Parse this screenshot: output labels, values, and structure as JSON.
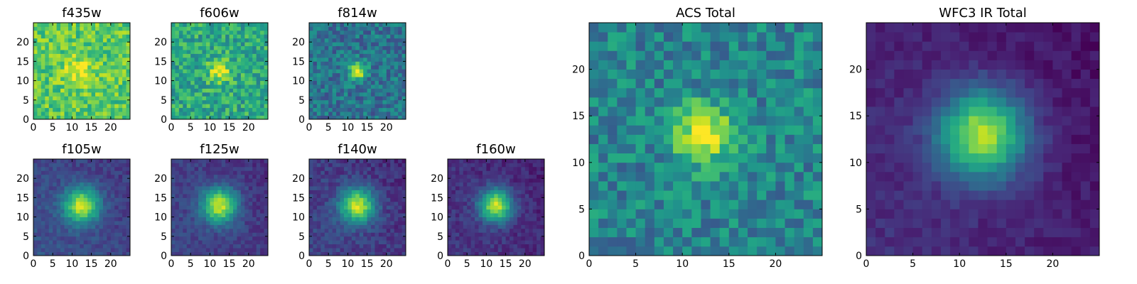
{
  "chart_data": [
    {
      "type": "heatmap",
      "title": "f435w",
      "size": 25,
      "xticks": [
        0,
        5,
        10,
        15,
        20
      ],
      "yticks": [
        0,
        5,
        10,
        15,
        20
      ],
      "xlim": [
        0,
        25
      ],
      "ylim": [
        0,
        25
      ],
      "peak": [
        11.5,
        12.0
      ],
      "sigma": 3.0,
      "amp": 0.2,
      "base": 0.74,
      "noise": 0.16,
      "grad": 0.0,
      "colormap": "viridis",
      "seed": 11
    },
    {
      "type": "heatmap",
      "title": "f606w",
      "size": 25,
      "xticks": [
        0,
        5,
        10,
        15,
        20
      ],
      "yticks": [
        0,
        5,
        10,
        15,
        20
      ],
      "xlim": [
        0,
        25
      ],
      "ylim": [
        0,
        25
      ],
      "peak": [
        12.0,
        12.0
      ],
      "sigma": 2.0,
      "amp": 0.4,
      "base": 0.6,
      "noise": 0.18,
      "grad": 0.0,
      "colormap": "viridis",
      "seed": 23
    },
    {
      "type": "heatmap",
      "title": "f814w",
      "size": 25,
      "xticks": [
        0,
        5,
        10,
        15,
        20
      ],
      "yticks": [
        0,
        5,
        10,
        15,
        20
      ],
      "xlim": [
        0,
        25
      ],
      "ylim": [
        0,
        25
      ],
      "peak": [
        12.0,
        12.0
      ],
      "sigma": 1.6,
      "amp": 0.6,
      "base": 0.38,
      "noise": 0.16,
      "grad": 0.0,
      "colormap": "viridis",
      "seed": 37
    },
    {
      "type": "heatmap",
      "title": "f105w",
      "size": 25,
      "xticks": [
        0,
        5,
        10,
        15,
        20
      ],
      "yticks": [
        0,
        5,
        10,
        15,
        20
      ],
      "xlim": [
        0,
        25
      ],
      "ylim": [
        0,
        25
      ],
      "peak": [
        12.0,
        12.5
      ],
      "sigma": 3.2,
      "amp": 0.72,
      "base": 0.26,
      "noise": 0.07,
      "grad": 0.1,
      "colormap": "viridis",
      "seed": 41
    },
    {
      "type": "heatmap",
      "title": "f125w",
      "size": 25,
      "xticks": [
        0,
        5,
        10,
        15,
        20
      ],
      "yticks": [
        0,
        5,
        10,
        15,
        20
      ],
      "xlim": [
        0,
        25
      ],
      "ylim": [
        0,
        25
      ],
      "peak": [
        12.0,
        12.5
      ],
      "sigma": 3.2,
      "amp": 0.74,
      "base": 0.22,
      "noise": 0.07,
      "grad": 0.08,
      "colormap": "viridis",
      "seed": 53
    },
    {
      "type": "heatmap",
      "title": "f140w",
      "size": 25,
      "xticks": [
        0,
        5,
        10,
        15,
        20
      ],
      "yticks": [
        0,
        5,
        10,
        15,
        20
      ],
      "xlim": [
        0,
        25
      ],
      "ylim": [
        0,
        25
      ],
      "peak": [
        12.0,
        12.5
      ],
      "sigma": 3.2,
      "amp": 0.75,
      "base": 0.22,
      "noise": 0.08,
      "grad": 0.1,
      "colormap": "viridis",
      "seed": 67
    },
    {
      "type": "heatmap",
      "title": "f160w",
      "size": 25,
      "xticks": [
        0,
        5,
        10,
        15,
        20
      ],
      "yticks": [
        0,
        5,
        10,
        15,
        20
      ],
      "xlim": [
        0,
        25
      ],
      "ylim": [
        0,
        25
      ],
      "peak": [
        12.0,
        12.5
      ],
      "sigma": 3.0,
      "amp": 0.78,
      "base": 0.17,
      "noise": 0.07,
      "grad": 0.08,
      "colormap": "viridis",
      "seed": 79
    },
    {
      "type": "heatmap",
      "title": "ACS Total",
      "size": 25,
      "xticks": [
        0,
        5,
        10,
        15,
        20
      ],
      "yticks": [
        0,
        5,
        10,
        15,
        20
      ],
      "xlim": [
        0,
        25
      ],
      "ylim": [
        0,
        25
      ],
      "peak": [
        11.8,
        12.5
      ],
      "sigma": 2.2,
      "amp": 0.58,
      "base": 0.45,
      "noise": 0.17,
      "grad": 0.0,
      "colormap": "viridis",
      "seed": 97
    },
    {
      "type": "heatmap",
      "title": "WFC3 IR Total",
      "size": 25,
      "xticks": [
        0,
        5,
        10,
        15,
        20
      ],
      "yticks": [
        0,
        5,
        10,
        15,
        20
      ],
      "xlim": [
        0,
        25
      ],
      "ylim": [
        0,
        25
      ],
      "peak": [
        12.0,
        12.5
      ],
      "sigma": 3.3,
      "amp": 0.8,
      "base": 0.14,
      "noise": 0.05,
      "grad": 0.1,
      "colormap": "viridis",
      "seed": 101
    }
  ]
}
